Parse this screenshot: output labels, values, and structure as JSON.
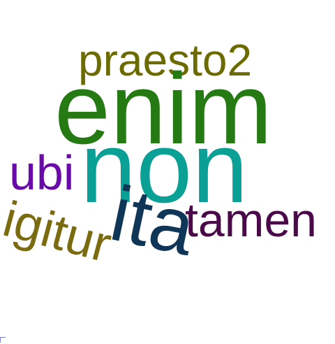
{
  "words": [
    {
      "key": "praesto",
      "text": "praesto2",
      "color": "#6b6b00"
    },
    {
      "key": "enim",
      "text": "enim",
      "color": "#257a13"
    },
    {
      "key": "ubi",
      "text": "ubi",
      "color": "#6a0aa8"
    },
    {
      "key": "non",
      "text": "non",
      "color": "#0aa095"
    },
    {
      "key": "tamen",
      "text": "tamen",
      "color": "#4a0a4a"
    },
    {
      "key": "ita",
      "text": "ita",
      "color": "#0f3557"
    },
    {
      "key": "igitur",
      "text": "igitur",
      "color": "#7a6a10"
    }
  ]
}
